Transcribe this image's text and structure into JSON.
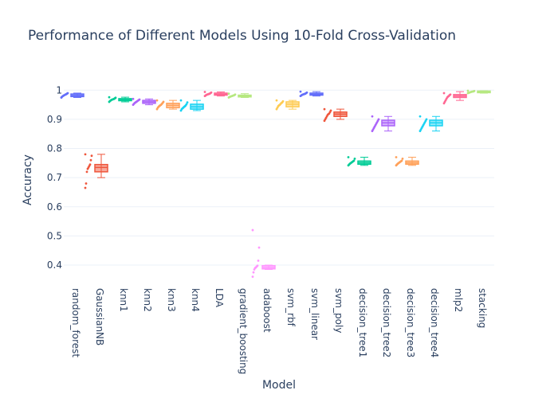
{
  "chart_data": {
    "type": "box",
    "title": "Performance of Different Models Using 10-Fold Cross-Validation",
    "xlabel": "Model",
    "ylabel": "Accuracy",
    "ylim": [
      0.34,
      1.05
    ],
    "yticks": [
      "0.4",
      "0.5",
      "0.6",
      "0.7",
      "0.8",
      "0.9",
      "1"
    ],
    "grid": true,
    "legend": "none",
    "categories": [
      "random_forest",
      "GaussianNB",
      "knn1",
      "knn2",
      "knn3",
      "knn4",
      "LDA",
      "gradient_boosting",
      "adaboost",
      "svm_rbf",
      "svm_linear",
      "svm_poly",
      "decision_tree1",
      "decision_tree2",
      "decision_tree3",
      "decision_tree4",
      "mlp2",
      "stacking"
    ],
    "series": [
      {
        "values": [
          0.975,
          0.978,
          0.98,
          0.982,
          0.983,
          0.985,
          0.986,
          0.988,
          0.99,
          0.975
        ],
        "q1": 0.978,
        "median": 0.982,
        "q3": 0.987,
        "lower": 0.975,
        "upper": 0.99,
        "color": "#636efa"
      },
      {
        "values": [
          0.665,
          0.68,
          0.72,
          0.73,
          0.735,
          0.74,
          0.745,
          0.76,
          0.775,
          0.78
        ],
        "q1": 0.72,
        "median": 0.735,
        "q3": 0.745,
        "lower": 0.7,
        "upper": 0.78,
        "color": "#ef553b"
      },
      {
        "values": [
          0.96,
          0.963,
          0.965,
          0.967,
          0.968,
          0.969,
          0.97,
          0.972,
          0.974,
          0.976
        ],
        "q1": 0.964,
        "median": 0.968,
        "q3": 0.971,
        "lower": 0.96,
        "upper": 0.976,
        "color": "#00cc96"
      },
      {
        "values": [
          0.95,
          0.953,
          0.956,
          0.958,
          0.96,
          0.962,
          0.964,
          0.966,
          0.968,
          0.97
        ],
        "q1": 0.955,
        "median": 0.96,
        "q3": 0.965,
        "lower": 0.95,
        "upper": 0.97,
        "color": "#ab63fa"
      },
      {
        "values": [
          0.935,
          0.94,
          0.943,
          0.946,
          0.948,
          0.95,
          0.953,
          0.956,
          0.96,
          0.965
        ],
        "q1": 0.94,
        "median": 0.948,
        "q3": 0.955,
        "lower": 0.935,
        "upper": 0.965,
        "color": "#ffa15a"
      },
      {
        "values": [
          0.93,
          0.935,
          0.938,
          0.94,
          0.943,
          0.945,
          0.948,
          0.952,
          0.958,
          0.965
        ],
        "q1": 0.935,
        "median": 0.943,
        "q3": 0.952,
        "lower": 0.93,
        "upper": 0.965,
        "color": "#19d3f3"
      },
      {
        "values": [
          0.98,
          0.982,
          0.984,
          0.985,
          0.986,
          0.987,
          0.988,
          0.99,
          0.992,
          0.994
        ],
        "q1": 0.983,
        "median": 0.986,
        "q3": 0.99,
        "lower": 0.98,
        "upper": 0.994,
        "color": "#ff6692"
      },
      {
        "values": [
          0.975,
          0.977,
          0.978,
          0.979,
          0.98,
          0.981,
          0.982,
          0.983,
          0.985,
          0.988
        ],
        "q1": 0.977,
        "median": 0.98,
        "q3": 0.983,
        "lower": 0.975,
        "upper": 0.988,
        "color": "#b6e880"
      },
      {
        "values": [
          0.36,
          0.375,
          0.385,
          0.39,
          0.392,
          0.395,
          0.398,
          0.415,
          0.46,
          0.52
        ],
        "q1": 0.387,
        "median": 0.392,
        "q3": 0.398,
        "lower": 0.385,
        "upper": 0.4,
        "color": "#ff97ff"
      },
      {
        "values": [
          0.935,
          0.94,
          0.945,
          0.948,
          0.95,
          0.953,
          0.956,
          0.958,
          0.962,
          0.965
        ],
        "q1": 0.943,
        "median": 0.952,
        "q3": 0.96,
        "lower": 0.935,
        "upper": 0.965,
        "color": "#fecb52"
      },
      {
        "values": [
          0.98,
          0.982,
          0.984,
          0.985,
          0.986,
          0.987,
          0.988,
          0.99,
          0.992,
          0.995
        ],
        "q1": 0.983,
        "median": 0.986,
        "q3": 0.99,
        "lower": 0.98,
        "upper": 0.995,
        "color": "#636efa"
      },
      {
        "values": [
          0.895,
          0.9,
          0.905,
          0.91,
          0.915,
          0.918,
          0.92,
          0.925,
          0.93,
          0.935
        ],
        "q1": 0.91,
        "median": 0.918,
        "q3": 0.925,
        "lower": 0.9,
        "upper": 0.935,
        "color": "#ef553b"
      },
      {
        "values": [
          0.742,
          0.745,
          0.748,
          0.75,
          0.752,
          0.754,
          0.756,
          0.758,
          0.765,
          0.77
        ],
        "q1": 0.746,
        "median": 0.751,
        "q3": 0.757,
        "lower": 0.742,
        "upper": 0.77,
        "color": "#00cc96"
      },
      {
        "values": [
          0.86,
          0.865,
          0.87,
          0.875,
          0.88,
          0.885,
          0.89,
          0.895,
          0.9,
          0.91
        ],
        "q1": 0.878,
        "median": 0.888,
        "q3": 0.897,
        "lower": 0.86,
        "upper": 0.91,
        "color": "#ab63fa"
      },
      {
        "values": [
          0.742,
          0.745,
          0.748,
          0.75,
          0.752,
          0.754,
          0.756,
          0.758,
          0.765,
          0.77
        ],
        "q1": 0.746,
        "median": 0.751,
        "q3": 0.757,
        "lower": 0.742,
        "upper": 0.77,
        "color": "#ffa15a"
      },
      {
        "values": [
          0.86,
          0.865,
          0.87,
          0.875,
          0.88,
          0.885,
          0.89,
          0.895,
          0.9,
          0.91
        ],
        "q1": 0.878,
        "median": 0.888,
        "q3": 0.897,
        "lower": 0.86,
        "upper": 0.91,
        "color": "#19d3f3"
      },
      {
        "values": [
          0.955,
          0.96,
          0.965,
          0.97,
          0.975,
          0.978,
          0.98,
          0.983,
          0.985,
          0.99
        ],
        "q1": 0.975,
        "median": 0.98,
        "q3": 0.985,
        "lower": 0.965,
        "upper": 0.995,
        "color": "#ff6692"
      },
      {
        "values": [
          0.99,
          0.991,
          0.992,
          0.993,
          0.994,
          0.995,
          0.995,
          0.996,
          0.997,
          0.998
        ],
        "q1": 0.992,
        "median": 0.995,
        "q3": 0.997,
        "lower": 0.99,
        "upper": 0.998,
        "color": "#b6e880"
      }
    ]
  }
}
